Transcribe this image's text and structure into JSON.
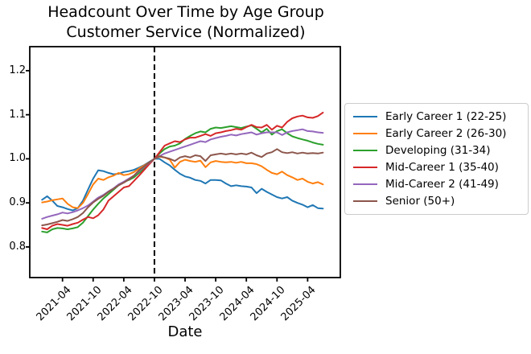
{
  "chart_data": {
    "type": "line",
    "title": "Headcount Over Time by Age Group",
    "subtitle": "Customer Service (Normalized)",
    "xlabel": "Date",
    "ylabel": "",
    "grid": false,
    "legend_position": "outside-right",
    "axis_color": "#000000",
    "ylim": [
      0.7305,
      1.2545
    ],
    "y_ticks": [
      0.8,
      0.9,
      1.0,
      1.1,
      1.2
    ],
    "y_tick_labels": [
      "0.8",
      "0.9",
      "1.0",
      "1.1",
      "1.2"
    ],
    "x_tick_labels": [
      "2021-04",
      "2021-10",
      "2022-04",
      "2022-10",
      "2023-04",
      "2023-10",
      "2024-04",
      "2024-10",
      "2025-04"
    ],
    "x_tick_indices": [
      4,
      10,
      16,
      22,
      28,
      34,
      40,
      46,
      52
    ],
    "normalization_vline": {
      "month": "2022-10",
      "index": 22,
      "style": "dashed",
      "color": "#000000"
    },
    "x_months": [
      "2020-12",
      "2021-01",
      "2021-02",
      "2021-03",
      "2021-04",
      "2021-05",
      "2021-06",
      "2021-07",
      "2021-08",
      "2021-09",
      "2021-10",
      "2021-11",
      "2021-12",
      "2022-01",
      "2022-02",
      "2022-03",
      "2022-04",
      "2022-05",
      "2022-06",
      "2022-07",
      "2022-08",
      "2022-09",
      "2022-10",
      "2022-11",
      "2022-12",
      "2023-01",
      "2023-02",
      "2023-03",
      "2023-04",
      "2023-05",
      "2023-06",
      "2023-07",
      "2023-08",
      "2023-09",
      "2023-10",
      "2023-11",
      "2023-12",
      "2024-01",
      "2024-02",
      "2024-03",
      "2024-04",
      "2024-05",
      "2024-06",
      "2024-07",
      "2024-08",
      "2024-09",
      "2024-10",
      "2024-11",
      "2024-12",
      "2025-01",
      "2025-02",
      "2025-03",
      "2025-04",
      "2025-05",
      "2025-06",
      "2025-07"
    ],
    "series": [
      {
        "name": "Early Career 1 (22-25)",
        "color": "#1f77b4",
        "values": [
          0.907,
          0.915,
          0.905,
          0.893,
          0.89,
          0.886,
          0.883,
          0.888,
          0.905,
          0.93,
          0.955,
          0.974,
          0.972,
          0.968,
          0.965,
          0.966,
          0.97,
          0.972,
          0.975,
          0.98,
          0.986,
          0.993,
          1.0,
          1.0,
          0.992,
          0.985,
          0.975,
          0.966,
          0.96,
          0.957,
          0.952,
          0.95,
          0.944,
          0.952,
          0.952,
          0.951,
          0.944,
          0.938,
          0.94,
          0.938,
          0.937,
          0.935,
          0.922,
          0.932,
          0.925,
          0.919,
          0.913,
          0.91,
          0.913,
          0.905,
          0.9,
          0.896,
          0.89,
          0.895,
          0.888,
          0.887
        ]
      },
      {
        "name": "Early Career 2 (26-30)",
        "color": "#ff7f0e",
        "values": [
          0.901,
          0.903,
          0.906,
          0.908,
          0.91,
          0.898,
          0.89,
          0.888,
          0.9,
          0.92,
          0.942,
          0.955,
          0.952,
          0.958,
          0.962,
          0.968,
          0.963,
          0.965,
          0.97,
          0.978,
          0.985,
          0.992,
          1.0,
          1.005,
          1.003,
          0.998,
          0.98,
          0.993,
          0.998,
          0.995,
          0.993,
          0.996,
          0.981,
          0.992,
          0.995,
          0.993,
          0.992,
          0.993,
          0.991,
          0.993,
          0.99,
          0.99,
          0.988,
          0.983,
          0.975,
          0.968,
          0.965,
          0.971,
          0.963,
          0.958,
          0.952,
          0.955,
          0.948,
          0.944,
          0.947,
          0.942
        ]
      },
      {
        "name": "Developing (31-34)",
        "color": "#2ca02c",
        "values": [
          0.835,
          0.833,
          0.84,
          0.843,
          0.842,
          0.84,
          0.842,
          0.845,
          0.855,
          0.87,
          0.885,
          0.898,
          0.91,
          0.92,
          0.93,
          0.94,
          0.948,
          0.952,
          0.958,
          0.968,
          0.978,
          0.99,
          1.0,
          1.012,
          1.022,
          1.028,
          1.03,
          1.035,
          1.045,
          1.052,
          1.058,
          1.062,
          1.06,
          1.068,
          1.071,
          1.07,
          1.072,
          1.074,
          1.072,
          1.07,
          1.073,
          1.076,
          1.068,
          1.06,
          1.068,
          1.055,
          1.063,
          1.067,
          1.058,
          1.051,
          1.047,
          1.044,
          1.041,
          1.037,
          1.034,
          1.032
        ]
      },
      {
        "name": "Mid-Career 1 (35-40)",
        "color": "#d62728",
        "values": [
          0.843,
          0.84,
          0.848,
          0.852,
          0.85,
          0.848,
          0.852,
          0.855,
          0.862,
          0.868,
          0.865,
          0.872,
          0.885,
          0.905,
          0.915,
          0.925,
          0.935,
          0.938,
          0.95,
          0.962,
          0.975,
          0.988,
          1.0,
          1.015,
          1.03,
          1.035,
          1.04,
          1.038,
          1.044,
          1.048,
          1.048,
          1.052,
          1.056,
          1.052,
          1.058,
          1.06,
          1.063,
          1.065,
          1.068,
          1.066,
          1.072,
          1.077,
          1.072,
          1.071,
          1.077,
          1.066,
          1.075,
          1.071,
          1.084,
          1.092,
          1.096,
          1.098,
          1.094,
          1.093,
          1.097,
          1.105
        ]
      },
      {
        "name": "Mid-Career 2 (41-49)",
        "color": "#9467bd",
        "values": [
          0.864,
          0.868,
          0.871,
          0.874,
          0.878,
          0.876,
          0.879,
          0.883,
          0.888,
          0.894,
          0.903,
          0.912,
          0.918,
          0.926,
          0.933,
          0.942,
          0.948,
          0.955,
          0.962,
          0.972,
          0.982,
          0.991,
          1.0,
          1.006,
          1.012,
          1.016,
          1.02,
          1.024,
          1.028,
          1.032,
          1.036,
          1.04,
          1.038,
          1.044,
          1.047,
          1.05,
          1.052,
          1.055,
          1.053,
          1.056,
          1.058,
          1.06,
          1.055,
          1.058,
          1.06,
          1.06,
          1.06,
          1.054,
          1.06,
          1.063,
          1.065,
          1.067,
          1.063,
          1.062,
          1.06,
          1.059
        ]
      },
      {
        "name": "Senior (50+)",
        "color": "#8c564b",
        "values": [
          0.849,
          0.851,
          0.854,
          0.857,
          0.861,
          0.859,
          0.863,
          0.868,
          0.877,
          0.89,
          0.901,
          0.909,
          0.916,
          0.925,
          0.932,
          0.94,
          0.946,
          0.953,
          0.962,
          0.974,
          0.983,
          0.992,
          1.0,
          1.006,
          1.003,
          1.0,
          0.995,
          1.003,
          1.006,
          1.003,
          1.008,
          1.006,
          0.995,
          1.008,
          1.01,
          1.012,
          1.01,
          1.012,
          1.01,
          1.012,
          1.01,
          1.014,
          1.008,
          1.004,
          1.012,
          1.015,
          1.022,
          1.015,
          1.013,
          1.015,
          1.012,
          1.014,
          1.012,
          1.013,
          1.012,
          1.014
        ]
      }
    ]
  }
}
